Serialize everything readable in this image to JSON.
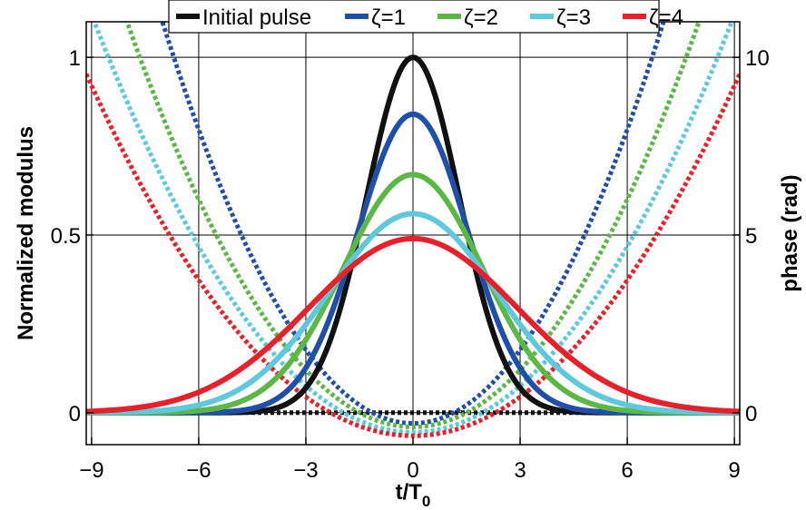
{
  "chart_data": {
    "type": "line",
    "xlabel": "t/T",
    "xlabel_sub": "0",
    "ylabel_left": "Normalized modulus",
    "ylabel_right": "phase (rad)",
    "xlim": [
      -9.15,
      9.15
    ],
    "ylim_left": [
      -0.09,
      1.1
    ],
    "ylim_right": [
      -0.9,
      11.0
    ],
    "xticks": [
      -9,
      -6,
      -3,
      0,
      3,
      6,
      9
    ],
    "xtick_labels": [
      "−9",
      "−6",
      "−3",
      "0",
      "3",
      "6",
      "9"
    ],
    "yticks_left": [
      0,
      0.5,
      1
    ],
    "ytick_labels_left": [
      "0",
      "0.5",
      "1"
    ],
    "yticks_right": [
      0,
      5,
      10
    ],
    "ytick_labels_right": [
      "0",
      "5",
      "10"
    ],
    "grid": true,
    "legend_position": "top-center",
    "legend": [
      "Initial pulse",
      "ζ=1",
      "ζ=2",
      "ζ=3",
      "ζ=4"
    ],
    "series": [
      {
        "name": "Initial pulse",
        "color": "#111111",
        "modulus": {
          "peak": 1.0,
          "width": 1.3
        },
        "phase": {
          "type": "constant",
          "value": 0
        }
      },
      {
        "name": "ζ=1",
        "color": "#1f4fa8",
        "modulus": {
          "peak": 0.84,
          "width": 1.54
        },
        "phase": {
          "type": "quadratic",
          "vertex": -0.3,
          "x": [
            -9,
            -6,
            -3,
            0,
            3,
            6,
            9
          ],
          "y": [
            18.3,
            7.6,
            1.5,
            -0.3,
            1.5,
            7.6,
            18.3
          ]
        }
      },
      {
        "name": "ζ=2",
        "color": "#5cb845",
        "modulus": {
          "peak": 0.67,
          "width": 1.95
        },
        "phase": {
          "type": "quadratic",
          "vertex": -0.4,
          "x": [
            -9,
            -6,
            -3,
            0,
            3,
            6,
            9
          ],
          "y": [
            14.0,
            6.0,
            1.2,
            -0.4,
            1.2,
            6.0,
            14.0
          ]
        }
      },
      {
        "name": "ζ=3",
        "color": "#5ec8dc",
        "modulus": {
          "peak": 0.56,
          "width": 2.35
        },
        "phase": {
          "type": "quadratic",
          "vertex": -0.55,
          "x": [
            -9,
            -6,
            -3,
            0,
            3,
            6,
            9
          ],
          "y": [
            11.2,
            4.7,
            0.8,
            -0.55,
            0.8,
            4.7,
            11.2
          ]
        }
      },
      {
        "name": "ζ=4",
        "color": "#e8202a",
        "modulus": {
          "peak": 0.49,
          "width": 2.9
        },
        "phase": {
          "type": "quadratic",
          "vertex": -0.65,
          "x": [
            -9,
            -6,
            -3,
            0,
            3,
            6,
            9
          ],
          "y": [
            9.2,
            3.7,
            0.45,
            -0.65,
            0.45,
            3.7,
            9.2
          ]
        }
      }
    ]
  }
}
